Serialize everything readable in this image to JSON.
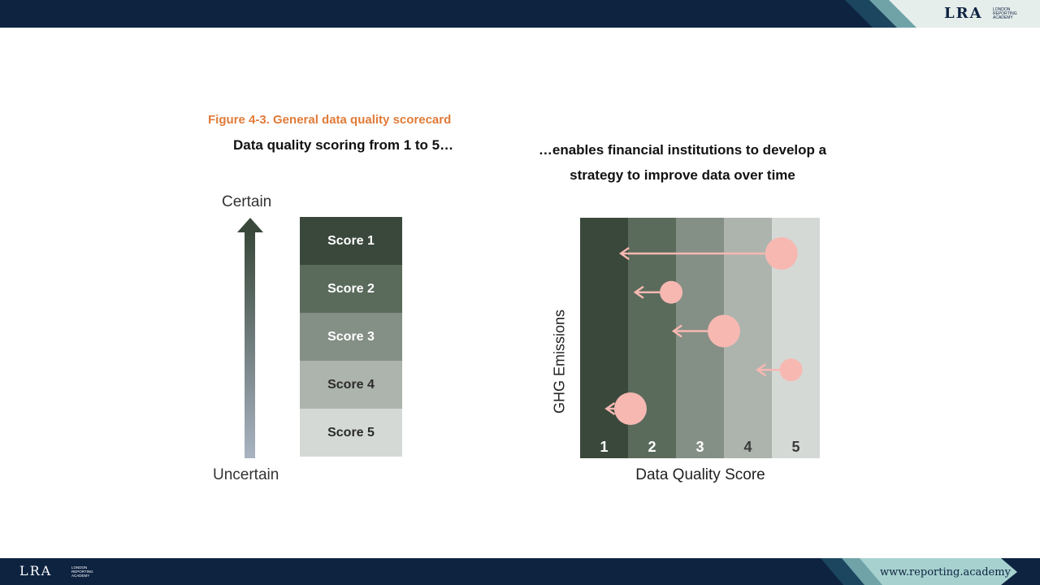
{
  "branding": {
    "logo": "LRA",
    "logo_subtext": "LONDON REPORTING ACADEMY",
    "website": "www.reporting.academy"
  },
  "figure": {
    "caption": "Figure 4-3. General data quality scorecard",
    "heading_left": "Data quality scoring from 1 to 5…",
    "heading_right_line1": "…enables financial institutions to develop a",
    "heading_right_line2": "strategy to improve data over time",
    "axis_top": "Certain",
    "axis_bottom": "Uncertain",
    "scores": [
      {
        "label": "Score 1",
        "bg": "#39483a",
        "fg": "#ffffff"
      },
      {
        "label": "Score 2",
        "bg": "#5a6b5c",
        "fg": "#ffffff"
      },
      {
        "label": "Score 3",
        "bg": "#848f85",
        "fg": "#ffffff"
      },
      {
        "label": "Score 4",
        "bg": "#adb4ae",
        "fg": "#2b2b2b"
      },
      {
        "label": "Score 5",
        "bg": "#d5d9d6",
        "fg": "#2b2b2b"
      }
    ]
  },
  "chart_data": {
    "type": "scatter",
    "xlabel": "Data Quality Score",
    "ylabel": "GHG Emissions",
    "categories": [
      "1",
      "2",
      "3",
      "4",
      "5"
    ],
    "column_colors": [
      "#39483a",
      "#5a6b5c",
      "#848f85",
      "#adb4ae",
      "#d5d9d6"
    ],
    "label_colors": [
      "#ffffff",
      "#ffffff",
      "#ffffff",
      "#3a3a3a",
      "#3a3a3a"
    ],
    "marker_color": "#f7b8b2",
    "points": [
      {
        "score": 4.2,
        "arrow_to": 0.85,
        "size": 3,
        "rank": 1
      },
      {
        "score": 1.9,
        "arrow_to": 1.15,
        "size": 2,
        "rank": 2
      },
      {
        "score": 3.0,
        "arrow_to": 1.95,
        "size": 3,
        "rank": 3
      },
      {
        "score": 4.4,
        "arrow_to": 3.7,
        "size": 2,
        "rank": 4
      },
      {
        "score": 1.05,
        "arrow_to": 0.55,
        "size": 3,
        "rank": 5
      }
    ]
  }
}
